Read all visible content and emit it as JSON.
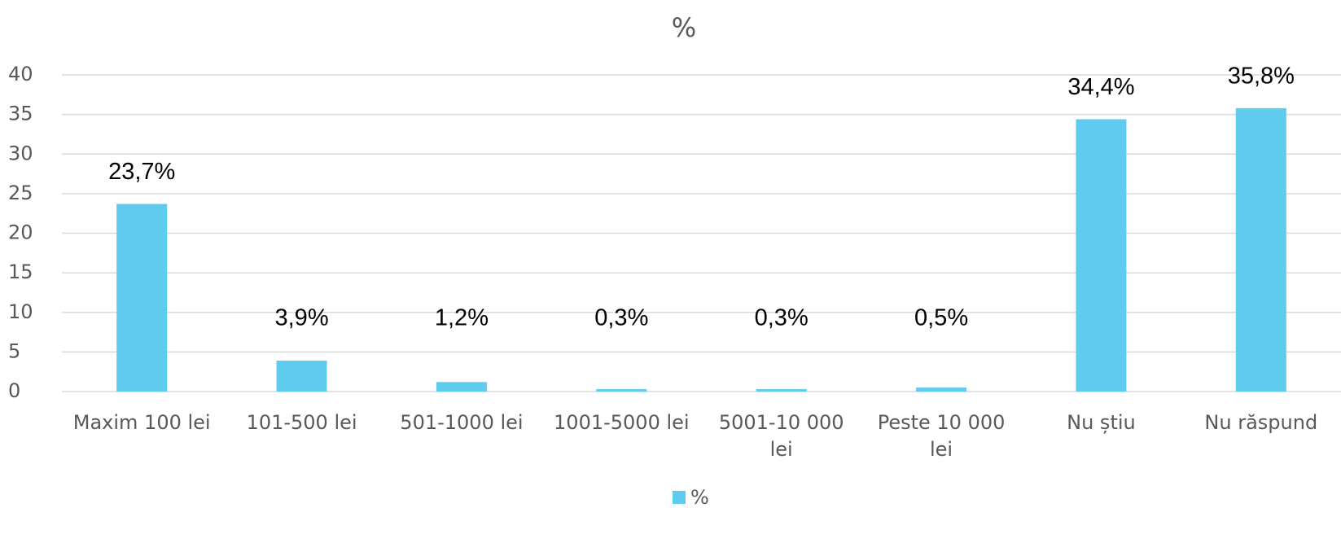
{
  "chart_data": {
    "type": "bar",
    "title": "%",
    "categories": [
      "Maxim 100 lei",
      "101-500 lei",
      "501-1000 lei",
      "1001-5000 lei",
      "5001-10 000 lei",
      "Peste 10 000 lei",
      "Nu știu",
      "Nu răspund"
    ],
    "series": [
      {
        "name": "%",
        "color": "#5ecbef",
        "values": [
          23.7,
          3.9,
          1.2,
          0.3,
          0.3,
          0.5,
          34.4,
          35.8
        ],
        "value_labels": [
          "23,7%",
          "3,9%",
          "1,2%",
          "0,3%",
          "0,3%",
          "0,5%",
          "34,4%",
          "35,8%"
        ]
      }
    ],
    "ylim": [
      0,
      40
    ],
    "yticks": [
      0,
      5,
      10,
      15,
      20,
      25,
      30,
      35,
      40
    ],
    "grid": true,
    "legend": "bottom"
  }
}
